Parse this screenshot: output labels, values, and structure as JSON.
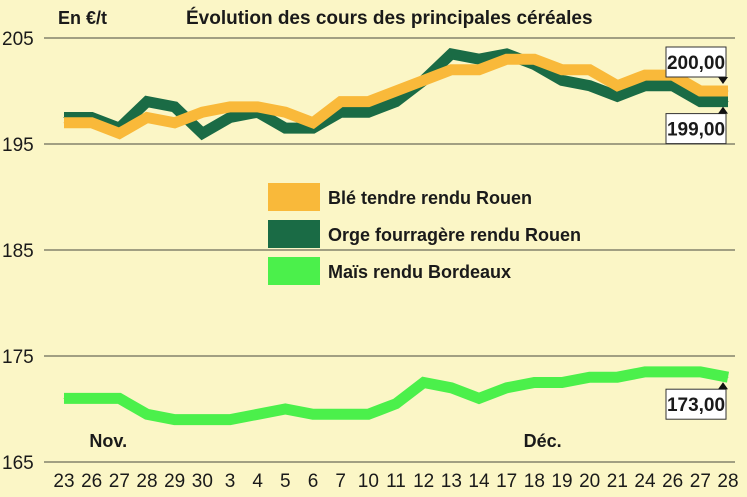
{
  "chart_data": {
    "type": "line",
    "title": "Évolution des cours des principales céréales",
    "ylabel": "En €/t",
    "ylim": [
      165,
      205
    ],
    "yticks": [
      165,
      175,
      185,
      195,
      205
    ],
    "x": [
      "23",
      "26",
      "27",
      "28",
      "29",
      "30",
      "3",
      "4",
      "5",
      "6",
      "7",
      "10",
      "11",
      "12",
      "13",
      "14",
      "17",
      "18",
      "19",
      "20",
      "21",
      "24",
      "26",
      "27",
      "28"
    ],
    "month_labels": [
      {
        "label": "Nov.",
        "index": 1.6
      },
      {
        "label": "Déc.",
        "index": 17.3
      }
    ],
    "series": [
      {
        "name": "Orge fourragère rendu Rouen",
        "color": "#1a6b45",
        "values": [
          197.5,
          197.5,
          196.5,
          199,
          198.5,
          196,
          197.5,
          198,
          196.5,
          196.5,
          198,
          198,
          199,
          201,
          203.5,
          203,
          203.5,
          202.5,
          201,
          200.5,
          199.5,
          200.5,
          200.5,
          199,
          199
        ]
      },
      {
        "name": "Blé tendre rendu Rouen",
        "color": "#f9b93a",
        "values": [
          197,
          197,
          196,
          197.5,
          197,
          198,
          198.5,
          198.5,
          198,
          197,
          199,
          199,
          200,
          201,
          202,
          202,
          203,
          203,
          202,
          202,
          200.5,
          201.5,
          201.5,
          200,
          200
        ]
      },
      {
        "name": "Maïs rendu Bordeaux",
        "color": "#4bf04b",
        "values": [
          171,
          171,
          171,
          169.5,
          169,
          169,
          169,
          169.5,
          170,
          169.5,
          169.5,
          169.5,
          170.5,
          172.5,
          172,
          171,
          172,
          172.5,
          172.5,
          173,
          173,
          173.5,
          173.5,
          173.5,
          173
        ]
      }
    ],
    "legend": {
      "placement": "center",
      "order": [
        "Blé tendre rendu Rouen",
        "Orge fourragère rendu Rouen",
        "Maïs rendu Bordeaux"
      ]
    },
    "callouts": [
      {
        "series": "Blé tendre rendu Rouen",
        "text": "200,00",
        "side": "above"
      },
      {
        "series": "Orge fourragère rendu Rouen",
        "text": "199,00",
        "side": "below"
      },
      {
        "series": "Maïs rendu Bordeaux",
        "text": "173,00",
        "side": "below"
      }
    ],
    "grid": "horizontal"
  }
}
